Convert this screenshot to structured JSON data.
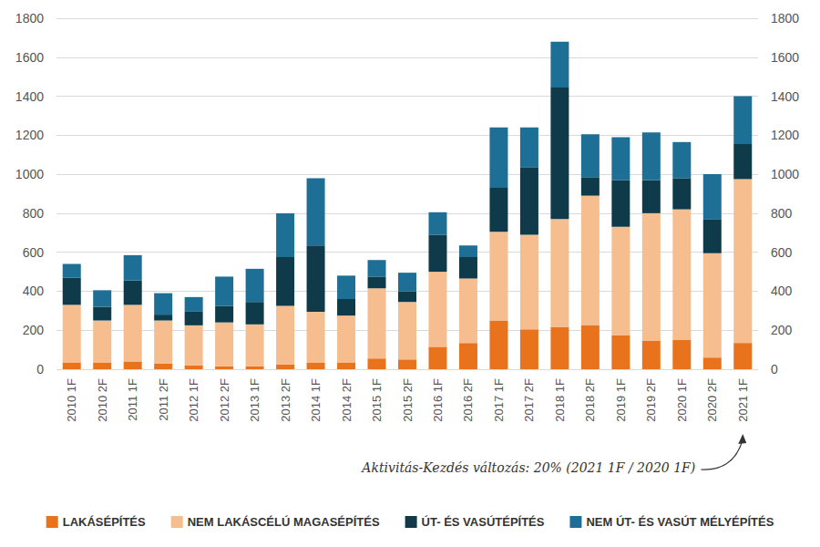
{
  "chart_data": {
    "type": "bar",
    "stacked": true,
    "grid": true,
    "legend": "bottom",
    "categories": [
      "2010 1F",
      "2010 2F",
      "2011 1F",
      "2011 2F",
      "2012 1F",
      "2012 2F",
      "2013 1F",
      "2013 2F",
      "2014 1F",
      "2014 2F",
      "2015 1F",
      "2015 2F",
      "2016 1F",
      "2016 2F",
      "2017 1F",
      "2017 2F",
      "2018 1F",
      "2018 2F",
      "2019 1F",
      "2019 2F",
      "2020 1F",
      "2020 2F",
      "2021 1F"
    ],
    "series": [
      {
        "name": "LAKÁSÉPÍTÉS",
        "color": "#e8731c",
        "values": [
          35,
          35,
          40,
          30,
          20,
          15,
          15,
          25,
          35,
          35,
          55,
          50,
          115,
          135,
          250,
          205,
          215,
          225,
          175,
          145,
          150,
          60,
          135
        ]
      },
      {
        "name": "NEM LAKÁSCÉLÚ MAGASÉPÍTÉS",
        "color": "#f6bd8e",
        "values": [
          295,
          215,
          290,
          220,
          205,
          225,
          215,
          300,
          260,
          240,
          360,
          295,
          385,
          330,
          455,
          485,
          555,
          665,
          555,
          655,
          670,
          535,
          840
        ]
      },
      {
        "name": "ÚT- ÉS VASÚTÉPÍTÉS",
        "color": "#0f3a4a",
        "values": [
          140,
          70,
          125,
          30,
          70,
          85,
          115,
          250,
          340,
          85,
          60,
          55,
          190,
          110,
          225,
          345,
          675,
          95,
          240,
          170,
          160,
          175,
          180
        ]
      },
      {
        "name": "NEM ÚT- ÉS VASÚT MÉLYÉPÍTÉS",
        "color": "#1d6f95",
        "values": [
          70,
          85,
          130,
          110,
          75,
          150,
          170,
          225,
          345,
          120,
          85,
          95,
          115,
          60,
          310,
          205,
          235,
          220,
          220,
          245,
          185,
          230,
          245
        ]
      }
    ],
    "ylim": [
      0,
      1800
    ],
    "yticks": [
      0,
      200,
      400,
      600,
      800,
      1000,
      1200,
      1400,
      1600,
      1800
    ],
    "y2lim": [
      0,
      1800
    ],
    "y2ticks": [
      0,
      200,
      400,
      600,
      800,
      1000,
      1200,
      1400,
      1600,
      1800
    ],
    "annotations": [
      "Aktivitás-Kezdés változás: 20% (2021 1F / 2020 1F)"
    ]
  }
}
